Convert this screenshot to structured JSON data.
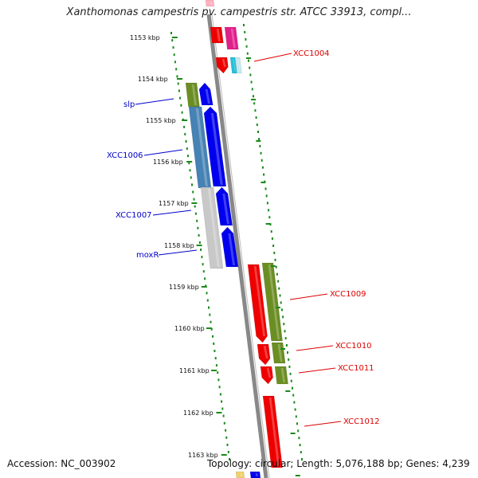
{
  "title": "Xanthomonas campestris pv. campestris str. ATCC 33913, compl...",
  "footer": {
    "accession": "Accession: NC_003902",
    "topology": "Topology: circular; Length: 5,076,188 bp; Genes: 4,239"
  },
  "axis": {
    "unit": "kbp",
    "ticks": [
      "1153 kbp",
      "1154 kbp",
      "1155 kbp",
      "1156 kbp",
      "1157 kbp",
      "1158 kbp",
      "1159 kbp",
      "1160 kbp",
      "1161 kbp",
      "1162 kbp",
      "1163 kbp"
    ]
  },
  "genes": {
    "left_strand": [
      "slp",
      "XCC1006",
      "XCC1007",
      "moxR"
    ],
    "right_strand": [
      "XCC1004",
      "XCC1009",
      "XCC1010",
      "XCC1011",
      "XCC1012"
    ]
  },
  "colors": {
    "left_label": "#0000cc",
    "right_label": "#dd0000",
    "backbone": "#888888",
    "tick_dots": "#1a8a1a",
    "gene_blue": "#0000ee",
    "gene_red": "#ee0000",
    "cog_green": "#6b8e23",
    "cog_steel": "#4682b4",
    "cog_gray": "#c8c8c8",
    "cog_pink": "#e0208a",
    "cog_cyan": "#20c0d8"
  }
}
